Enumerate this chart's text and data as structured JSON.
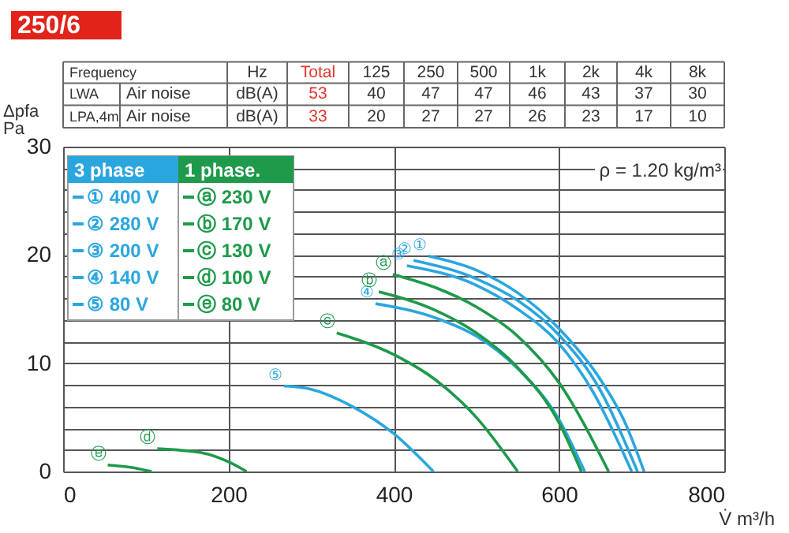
{
  "chart_data": {
    "type": "line",
    "title": "250/6",
    "xlabel": "V̇ m³/h",
    "ylabel": "Δpfa Pa",
    "legend_title": "3 phase",
    "legend": "top left",
    "grid": true,
    "xlim": [
      0,
      800
    ],
    "xticks": [
      0,
      200,
      400,
      600,
      800
    ],
    "ylim": [
      0,
      30
    ],
    "yticks": [
      0,
      {
        "value": 2,
        "label": null
      },
      {
        "value": 4,
        "label": null
      },
      {
        "value": 6,
        "label": null
      },
      {
        "value": 8,
        "label": null
      },
      10,
      {
        "value": 12,
        "label": null
      },
      {
        "value": 14,
        "label": null
      },
      {
        "value": 16,
        "label": null
      },
      {
        "value": 18,
        "label": null
      },
      20,
      {
        "value": 22,
        "label": null
      },
      {
        "value": 24,
        "label": null
      },
      {
        "value": 26,
        "label": null
      },
      {
        "value": 28,
        "label": null
      },
      30
    ],
    "series": [
      {
        "name": "① 400 V",
        "color": "#2aa6df",
        "x": [
          442,
          500,
          550,
          600,
          650,
          680,
          703
        ],
        "values": [
          19.9,
          18.6,
          16.5,
          13.2,
          8.5,
          4.5,
          0
        ]
      },
      {
        "name": "② 280 V",
        "color": "#2aa6df",
        "x": [
          424,
          500,
          550,
          600,
          650,
          695
        ],
        "values": [
          19.5,
          17.8,
          15.8,
          12.6,
          7.5,
          0
        ]
      },
      {
        "name": "③ 200 V",
        "color": "#2aa6df",
        "x": [
          416,
          500,
          550,
          600,
          640,
          688
        ],
        "values": [
          19.0,
          17.2,
          15.0,
          11.8,
          7.5,
          0
        ]
      },
      {
        "name": "④ 140 V",
        "color": "#2aa6df",
        "x": [
          378,
          450,
          500,
          550,
          600,
          631
        ],
        "values": [
          15.5,
          14.2,
          12.5,
          9.5,
          4.8,
          0
        ]
      },
      {
        "name": "⑤ 80 V",
        "color": "#2aa6df",
        "x": [
          267,
          300,
          350,
          400,
          448
        ],
        "values": [
          7.9,
          7.6,
          6.0,
          3.5,
          0
        ]
      },
      {
        "name": "ⓐ 230 V",
        "color": "#1e9a4a",
        "x": [
          399,
          450,
          500,
          550,
          600,
          660
        ],
        "values": [
          18.2,
          17.0,
          15.2,
          12.5,
          8.2,
          0
        ]
      },
      {
        "name": "ⓑ 170 V",
        "color": "#1e9a4a",
        "x": [
          382,
          450,
          500,
          550,
          600,
          627
        ],
        "values": [
          16.6,
          14.9,
          12.8,
          9.6,
          4.5,
          0
        ]
      },
      {
        "name": "ⓒ 130 V",
        "color": "#1e9a4a",
        "x": [
          331,
          400,
          450,
          500,
          550
        ],
        "values": [
          12.8,
          10.8,
          8.5,
          5.0,
          0
        ]
      },
      {
        "name": "ⓓ 100 V",
        "color": "#1e9a4a",
        "x": [
          114,
          170,
          200,
          222
        ],
        "values": [
          2.1,
          1.7,
          0.9,
          0
        ]
      },
      {
        "name": "ⓔ 80 V",
        "color": "#1e9a4a",
        "x": [
          54,
          80,
          107
        ],
        "values": [
          0.6,
          0.4,
          0
        ]
      }
    ],
    "annotations": [
      "ρ = 1.20 kg/m³",
      "1 phase.",
      "Frequency",
      "Hz",
      "Total",
      "125",
      "250",
      "500",
      "1k",
      "2k",
      "4k",
      "8k",
      "LWA",
      "Air noise",
      "dB(A)",
      "53",
      "40",
      "47",
      "47",
      "46",
      "43",
      "37",
      "30",
      "LPA,4m",
      "Air noise",
      "dB(A)",
      "33",
      "20",
      "27",
      "27",
      "26",
      "23",
      "17",
      "10",
      {
        "text": "①",
        "x": 442,
        "y": 19.9
      },
      {
        "text": "②",
        "x": 424,
        "y": 19.5
      },
      {
        "text": "③",
        "x": 416,
        "y": 19.0
      },
      {
        "text": "④",
        "x": 378,
        "y": 15.5
      },
      {
        "text": "⑤",
        "x": 267,
        "y": 7.9
      },
      {
        "text": "ⓐ",
        "x": 399,
        "y": 18.2
      },
      {
        "text": "ⓑ",
        "x": 382,
        "y": 16.6
      },
      {
        "text": "ⓒ",
        "x": 331,
        "y": 12.8
      },
      {
        "text": "ⓓ",
        "x": 114,
        "y": 2.1
      },
      {
        "text": "ⓔ",
        "x": 54,
        "y": 0.6
      }
    ]
  }
}
